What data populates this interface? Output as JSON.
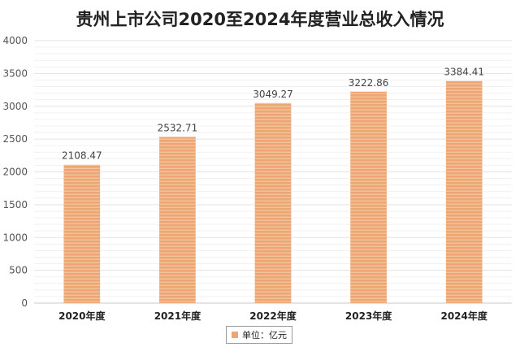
{
  "chart_data": {
    "type": "bar",
    "title": "贵州上市公司2020至2024年度营业总收入情况",
    "categories": [
      "2020年度",
      "2021年度",
      "2022年度",
      "2023年度",
      "2024年度"
    ],
    "series": [
      {
        "name": "单位：亿元",
        "values": [
          2108.47,
          2532.71,
          3049.27,
          3222.86,
          3384.41
        ]
      }
    ],
    "data_labels": [
      "2108.47",
      "2532.71",
      "3049.27",
      "3222.86",
      "3384.41"
    ],
    "y_ticks": [
      "0",
      "500",
      "1000",
      "1500",
      "2000",
      "2500",
      "3000",
      "3500",
      "4000"
    ],
    "ylim": [
      0,
      4000
    ],
    "grid": true,
    "legend_position": "bottom",
    "colors": {
      "bar": "#EDA573",
      "bar_stripe": "#F5C8A3",
      "grid": "#e3e3e3"
    }
  }
}
